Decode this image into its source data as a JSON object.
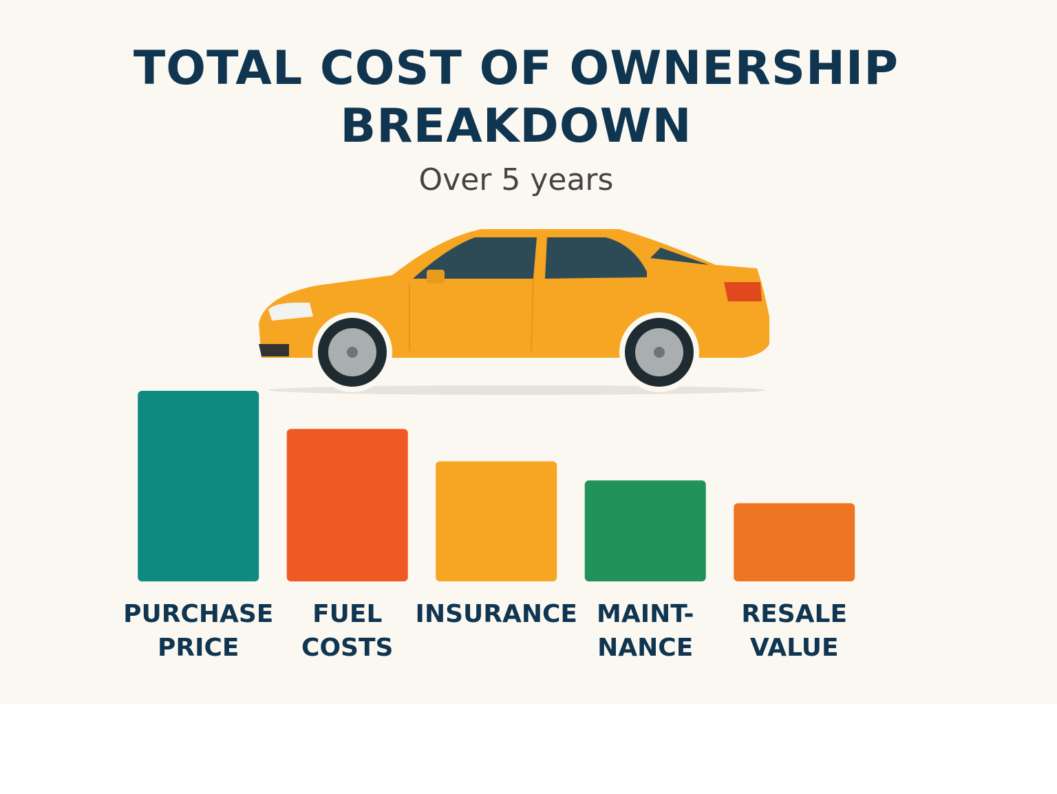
{
  "chart_data": {
    "type": "bar",
    "title": "TOTAL COST OF OWNERSHIP BREAKDOWN",
    "subtitle": "Over 5 years",
    "categories": [
      "PURCHASE\nPRICE",
      "FUEL\nCOSTS",
      "INSURANCE",
      "MAINT-\nNANCE",
      "RESALE\nVALUE"
    ],
    "values": [
      100,
      80,
      63,
      53,
      41
    ],
    "colors": [
      "#0e8a80",
      "#ef5a24",
      "#f6a623",
      "#21935a",
      "#ee7623"
    ],
    "ylim": [
      0,
      100
    ]
  }
}
